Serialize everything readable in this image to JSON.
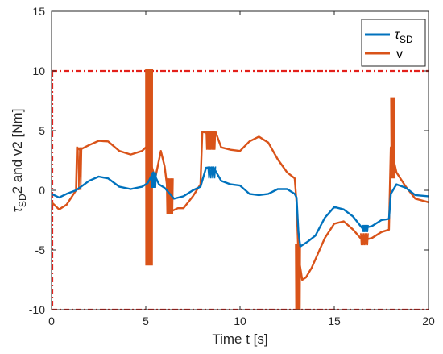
{
  "chart_data": {
    "type": "line",
    "xlabel": "Time t [s]",
    "ylabel_main": "τ",
    "ylabel_sub": "SD",
    "ylabel_rest": "2 and v2 [Nm]",
    "xlim": [
      0,
      20
    ],
    "ylim": [
      -10,
      15
    ],
    "xticks": [
      "0",
      "5",
      "10",
      "15",
      "20"
    ],
    "yticks": [
      "-10",
      "-5",
      "0",
      "5",
      "10",
      "15"
    ],
    "grid": false,
    "legend_position": "top-right",
    "limit_lines": [
      10,
      -10
    ],
    "limit_color": "#e3201b",
    "series": [
      {
        "name": "τ",
        "name_sub": "SD",
        "color": "#0072bd",
        "points": [
          [
            0,
            -0.3
          ],
          [
            0.4,
            -0.6
          ],
          [
            0.8,
            -0.3
          ],
          [
            1.3,
            0
          ],
          [
            2.0,
            0.8
          ],
          [
            2.5,
            1.15
          ],
          [
            3.0,
            1.0
          ],
          [
            3.6,
            0.3
          ],
          [
            4.2,
            0.1
          ],
          [
            4.8,
            0.3
          ],
          [
            5.1,
            0.6
          ],
          [
            5.4,
            1.5
          ],
          [
            5.7,
            0.5
          ],
          [
            6.0,
            0.2
          ],
          [
            6.5,
            -0.7
          ],
          [
            7.0,
            -0.5
          ],
          [
            7.5,
            0
          ],
          [
            7.9,
            0.3
          ],
          [
            8.2,
            1.9
          ],
          [
            8.6,
            1.9
          ],
          [
            9.0,
            0.8
          ],
          [
            9.5,
            0.5
          ],
          [
            10.0,
            0.4
          ],
          [
            10.5,
            -0.3
          ],
          [
            11.0,
            -0.4
          ],
          [
            11.5,
            -0.3
          ],
          [
            12.0,
            0.1
          ],
          [
            12.5,
            0.1
          ],
          [
            12.9,
            -0.3
          ],
          [
            13.0,
            -0.6
          ],
          [
            13.1,
            -3.5
          ],
          [
            13.2,
            -4.7
          ],
          [
            13.6,
            -4.3
          ],
          [
            14.0,
            -3.8
          ],
          [
            14.5,
            -2.3
          ],
          [
            15.0,
            -1.4
          ],
          [
            15.5,
            -1.6
          ],
          [
            16.0,
            -2.2
          ],
          [
            16.5,
            -3.2
          ],
          [
            17.0,
            -3.0
          ],
          [
            17.5,
            -2.5
          ],
          [
            17.9,
            -2.4
          ],
          [
            18.0,
            -0.3
          ],
          [
            18.3,
            0.5
          ],
          [
            18.8,
            0.2
          ],
          [
            19.3,
            -0.4
          ],
          [
            20,
            -0.5
          ]
        ]
      },
      {
        "name": "v",
        "color": "#d95319",
        "points": [
          [
            0,
            -1.0
          ],
          [
            0.4,
            -1.6
          ],
          [
            0.8,
            -1.2
          ],
          [
            1.3,
            0
          ],
          [
            1.35,
            3.6
          ],
          [
            1.5,
            3.4
          ],
          [
            2.0,
            3.8
          ],
          [
            2.5,
            4.15
          ],
          [
            3.0,
            4.1
          ],
          [
            3.6,
            3.3
          ],
          [
            4.2,
            3.0
          ],
          [
            4.8,
            3.3
          ],
          [
            5.0,
            3.6
          ],
          [
            5.2,
            2.6
          ],
          [
            5.5,
            1.0
          ],
          [
            5.8,
            3.3
          ],
          [
            6.0,
            2.0
          ],
          [
            6.3,
            -1.8
          ],
          [
            6.7,
            -1.5
          ],
          [
            7.0,
            -1.5
          ],
          [
            7.5,
            -0.5
          ],
          [
            7.9,
            0.5
          ],
          [
            8.0,
            4.9
          ],
          [
            8.3,
            4.8
          ],
          [
            8.7,
            4.9
          ],
          [
            9.0,
            3.6
          ],
          [
            9.5,
            3.4
          ],
          [
            10.0,
            3.3
          ],
          [
            10.5,
            4.1
          ],
          [
            11.0,
            4.5
          ],
          [
            11.5,
            4.0
          ],
          [
            12.0,
            2.6
          ],
          [
            12.5,
            1.5
          ],
          [
            12.9,
            1.0
          ],
          [
            13.0,
            -1.0
          ],
          [
            13.1,
            -5.5
          ],
          [
            13.3,
            -7.5
          ],
          [
            13.5,
            -7.3
          ],
          [
            13.8,
            -6.5
          ],
          [
            14.5,
            -4.0
          ],
          [
            15.0,
            -2.8
          ],
          [
            15.5,
            -2.6
          ],
          [
            16.0,
            -3.3
          ],
          [
            16.5,
            -4.2
          ],
          [
            17.0,
            -4.0
          ],
          [
            17.5,
            -3.5
          ],
          [
            17.9,
            -3.3
          ],
          [
            18.0,
            3.6
          ],
          [
            18.3,
            1.5
          ],
          [
            18.8,
            0.3
          ],
          [
            19.3,
            -0.7
          ],
          [
            20,
            -1.0
          ]
        ]
      }
    ],
    "noise_bands": [
      {
        "series": 1,
        "x": [
          5.0,
          5.35
        ],
        "ymin": -6.3,
        "ymax": 10.2,
        "density": 44
      },
      {
        "series": 1,
        "x": [
          6.1,
          6.45
        ],
        "ymin": -2.0,
        "ymax": 1.0,
        "density": 12
      },
      {
        "series": 1,
        "x": [
          8.2,
          8.7
        ],
        "ymin": 3.4,
        "ymax": 5.0,
        "density": 14
      },
      {
        "series": 1,
        "x": [
          12.95,
          13.2
        ],
        "ymin": -10.0,
        "ymax": -4.5,
        "density": 16
      },
      {
        "series": 1,
        "x": [
          16.4,
          16.8
        ],
        "ymin": -4.6,
        "ymax": -3.6,
        "density": 10
      },
      {
        "series": 1,
        "x": [
          1.4,
          1.6
        ],
        "ymin": 0.0,
        "ymax": 3.6,
        "density": 4
      },
      {
        "series": 1,
        "x": [
          18.0,
          18.2
        ],
        "ymin": 1.0,
        "ymax": 7.8,
        "density": 8
      },
      {
        "series": 0,
        "x": [
          5.3,
          5.55
        ],
        "ymin": 0.2,
        "ymax": 1.5,
        "density": 8
      },
      {
        "series": 0,
        "x": [
          8.3,
          8.7
        ],
        "ymin": 1.0,
        "ymax": 2.0,
        "density": 8
      },
      {
        "series": 0,
        "x": [
          16.5,
          16.8
        ],
        "ymin": -3.5,
        "ymax": -2.9,
        "density": 8
      }
    ]
  }
}
